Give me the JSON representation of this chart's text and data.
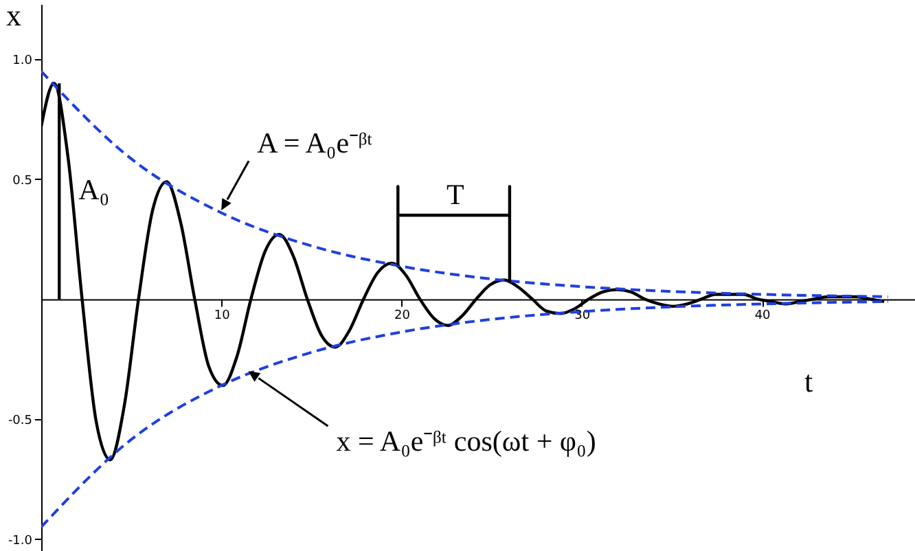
{
  "chart_data": {
    "type": "line",
    "xlabel": "t",
    "ylabel": "x",
    "xlim": [
      0,
      48.5
    ],
    "ylim": [
      -1.05,
      1.23
    ],
    "xticks": [
      10,
      20,
      30,
      40
    ],
    "yticks": [
      {
        "value": -1,
        "label": "-1.0"
      },
      -0.5,
      0.5,
      {
        "value": 1,
        "label": "1.0"
      }
    ],
    "series": [
      {
        "color": "#000000",
        "line_style": "solid",
        "x": [
          0,
          0.71,
          1.49,
          2.27,
          3.05,
          3.83,
          4.62,
          5.4,
          6.18,
          6.96,
          7.74,
          8.52,
          9.3,
          10.08,
          10.86,
          11.64,
          12.43,
          13.21,
          13.99,
          14.77,
          15.55,
          16.33,
          17.11,
          17.89,
          18.67,
          19.45,
          20.24,
          21.02,
          21.8,
          22.58,
          23.36,
          24.14,
          24.92,
          25.7,
          26.48,
          27.26,
          28.05,
          28.83,
          29.61,
          30.39,
          31.17,
          31.95,
          32.73,
          33.51,
          34.29,
          35.07,
          35.86,
          36.64,
          37.42,
          38.2,
          38.98,
          39.76,
          40.54,
          41.32,
          42.1,
          42.88,
          43.67,
          44.45,
          45.23,
          46.01,
          46.79
        ],
        "values": [
          0.72,
          0.9,
          0.59,
          0,
          -0.51,
          -0.67,
          -0.44,
          0,
          0.37,
          0.49,
          0.32,
          0,
          -0.28,
          -0.36,
          -0.24,
          0,
          0.2,
          0.27,
          0.18,
          0,
          -0.15,
          -0.2,
          -0.13,
          0,
          0.11,
          0.15,
          0.1,
          0,
          -0.08,
          -0.11,
          -0.07,
          0,
          0.06,
          0.08,
          0.05,
          0,
          -0.05,
          -0.06,
          -0.04,
          0,
          0.03,
          0.04,
          0.03,
          0,
          -0.02,
          -0.03,
          -0.02,
          0,
          0.02,
          0.02,
          0.02,
          0,
          -0.01,
          -0.02,
          -0.01,
          0,
          0.01,
          0.01,
          0.01,
          0,
          -0.01
        ]
      },
      {
        "color": "#1f3fe0",
        "line_style": "dashed",
        "x": [
          0,
          5,
          10,
          15,
          20,
          25,
          30,
          35,
          40,
          47
        ],
        "values": [
          0.95,
          0.585,
          0.36,
          0.222,
          0.137,
          0.084,
          0.052,
          0.032,
          0.02,
          0.01
        ]
      },
      {
        "color": "#1f3fe0",
        "line_style": "dashed",
        "x": [
          0,
          5,
          10,
          15,
          20,
          25,
          30,
          35,
          40,
          47
        ],
        "values": [
          -0.95,
          -0.585,
          -0.36,
          -0.222,
          -0.137,
          -0.084,
          -0.052,
          -0.032,
          -0.02,
          -0.01
        ]
      },
      {
        "color": "#000000",
        "line_style": "solid",
        "x": [
          1,
          1
        ],
        "values": [
          0,
          0.9
        ]
      },
      {
        "color": "#000000",
        "line_style": "solid",
        "x": [
          19.8,
          19.8,
          19.8,
          26,
          26,
          26
        ],
        "values": [
          0.14,
          0.47,
          0.35,
          0.35,
          0.47,
          0.07
        ]
      }
    ],
    "annotations": [
      {
        "text": "A = A₀e⁻ᵝᵗ",
        "x": 10.3,
        "y": 0.37
      },
      {
        "text": "A₀",
        "x": 1,
        "y": 0.45
      },
      "T",
      {
        "text": "x = A₀e⁻ᵝᵗ cos(ωt + φ₀)",
        "x": 11.8,
        "y": -0.3
      }
    ]
  }
}
